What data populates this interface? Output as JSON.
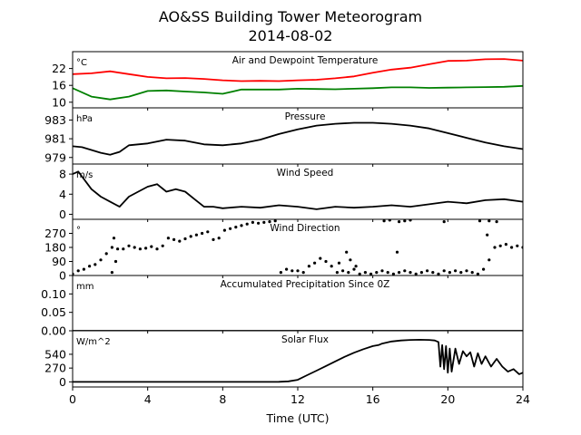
{
  "figure": {
    "title_line1": "AO&SS Building Tower Meteorogram",
    "title_line2": "2014-08-02",
    "xlabel": "Time (UTC)"
  },
  "chart_data": {
    "type": "line",
    "xlim": [
      0,
      24
    ],
    "xticks": [
      0,
      4,
      8,
      12,
      16,
      20,
      24
    ],
    "panels": [
      {
        "title": "Air and Dewpoint Temperature",
        "unit": "°C",
        "ylim": [
          8,
          28
        ],
        "yticks": [
          10,
          16,
          22
        ],
        "series": [
          {
            "color": "#ff0000",
            "style": "line",
            "x": [
              0,
              1,
              2,
              3,
              4,
              5,
              6,
              7,
              8,
              9,
              10,
              11,
              12,
              13,
              14,
              15,
              16,
              17,
              18,
              19,
              20,
              21,
              22,
              23,
              24
            ],
            "y": [
              20,
              20.3,
              21,
              20,
              19,
              18.5,
              18.6,
              18.3,
              17.8,
              17.5,
              17.6,
              17.5,
              17.8,
              18,
              18.5,
              19.2,
              20.5,
              21.6,
              22.3,
              23.5,
              24.7,
              24.8,
              25.3,
              25.4,
              24.8
            ]
          },
          {
            "color": "#008000",
            "style": "line",
            "x": [
              0,
              1,
              2,
              3,
              4,
              5,
              6,
              7,
              8,
              9,
              10,
              11,
              12,
              13,
              14,
              15,
              16,
              17,
              18,
              19,
              20,
              21,
              22,
              23,
              24
            ],
            "y": [
              15,
              12,
              11,
              12,
              14,
              14.2,
              13.8,
              13.5,
              13,
              14.5,
              14.5,
              14.5,
              14.8,
              14.7,
              14.6,
              14.8,
              15,
              15.3,
              15.3,
              15.1,
              15.2,
              15.3,
              15.4,
              15.5,
              15.8
            ]
          }
        ]
      },
      {
        "title": "Pressure",
        "unit": "hPa",
        "ylim": [
          978.3,
          984.3
        ],
        "yticks": [
          979,
          981,
          983
        ],
        "series": [
          {
            "color": "#000000",
            "style": "line",
            "x": [
              0,
              0.5,
              1,
              1.5,
              2,
              2.5,
              3,
              4,
              5,
              6,
              7,
              8,
              9,
              10,
              11,
              12,
              13,
              14,
              15,
              16,
              17,
              18,
              19,
              20,
              21,
              22,
              23,
              24
            ],
            "y": [
              980.2,
              980.1,
              979.8,
              979.5,
              979.3,
              979.6,
              980.3,
              980.5,
              980.9,
              980.8,
              980.4,
              980.3,
              980.5,
              980.9,
              981.5,
              982,
              982.4,
              982.6,
              982.7,
              982.7,
              982.6,
              982.4,
              982.1,
              981.6,
              981.1,
              980.6,
              980.2,
              979.9
            ]
          }
        ]
      },
      {
        "title": "Wind Speed",
        "unit": "m/s",
        "ylim": [
          -1,
          10
        ],
        "yticks": [
          0,
          4,
          8
        ],
        "series": [
          {
            "color": "#000000",
            "style": "line",
            "x": [
              0,
              0.3,
              0.6,
              1,
              1.5,
              2,
              2.5,
              3,
              3.5,
              4,
              4.5,
              5,
              5.5,
              6,
              6.5,
              7,
              7.5,
              8,
              9,
              10,
              11,
              12,
              13,
              14,
              15,
              16,
              17,
              18,
              19,
              20,
              21,
              22,
              23,
              24
            ],
            "y": [
              8,
              8.5,
              7,
              5,
              3.5,
              2.5,
              1.5,
              3.5,
              4.5,
              5.5,
              6,
              4.5,
              5,
              4.5,
              3,
              1.5,
              1.5,
              1.2,
              1.5,
              1.3,
              1.8,
              1.5,
              1,
              1.5,
              1.3,
              1.5,
              1.8,
              1.5,
              2,
              2.5,
              2.2,
              2.8,
              3,
              2.5
            ]
          }
        ]
      },
      {
        "title": "Wind Direction",
        "unit": "°",
        "ylim": [
          0,
          360
        ],
        "yticks": [
          0,
          90,
          180,
          270
        ],
        "series": [
          {
            "color": "#000000",
            "style": "dots",
            "x": [
              0,
              0.3,
              0.6,
              0.9,
              1.2,
              1.5,
              1.8,
              2.1,
              2.4,
              2.7,
              3.0,
              3.3,
              3.6,
              3.9,
              4.2,
              4.5,
              4.8,
              5.1,
              5.4,
              5.7,
              6.0,
              6.3,
              6.6,
              6.9,
              7.2,
              7.5,
              7.8,
              8.1,
              8.4,
              8.7,
              9.0,
              9.3,
              9.6,
              9.9,
              10.2,
              10.5,
              10.8,
              11.1,
              11.4,
              11.7,
              12.0,
              12.3,
              12.6,
              12.9,
              13.2,
              13.5,
              13.8,
              14.1,
              14.4,
              14.7,
              15.0,
              15.3,
              15.6,
              15.9,
              16.2,
              16.5,
              16.8,
              17.1,
              17.4,
              17.7,
              18.0,
              18.3,
              18.6,
              18.9,
              19.2,
              19.5,
              19.8,
              20.1,
              20.4,
              20.7,
              21.0,
              21.3,
              21.6,
              21.9,
              22.2,
              22.5,
              22.8,
              23.1,
              23.4,
              23.7,
              24.0
            ],
            "y": [
              10,
              30,
              40,
              60,
              70,
              100,
              140,
              180,
              170,
              170,
              190,
              180,
              170,
              175,
              185,
              170,
              190,
              240,
              230,
              220,
              235,
              250,
              260,
              270,
              280,
              230,
              240,
              290,
              300,
              310,
              320,
              330,
              340,
              335,
              340,
              345,
              350,
              20,
              40,
              30,
              30,
              20,
              60,
              80,
              110,
              90,
              60,
              20,
              30,
              20,
              40,
              10,
              20,
              10,
              20,
              30,
              20,
              10,
              20,
              30,
              20,
              10,
              20,
              30,
              20,
              10,
              30,
              20,
              30,
              20,
              30,
              20,
              10,
              40,
              100,
              180,
              190,
              200,
              180,
              190,
              180
            ]
          },
          {
            "color": "#000000",
            "style": "dots",
            "x": [
              2.2,
              2.3,
              2.1,
              14.2,
              14.6,
              14.8,
              15.1,
              16.6,
              16.9,
              17.4,
              17.7,
              18.0,
              19.8,
              21.7,
              22.2,
              22.6,
              22.1,
              17.3
            ],
            "y": [
              240,
              90,
              20,
              80,
              150,
              100,
              60,
              350,
              355,
              345,
              350,
              355,
              345,
              350,
              350,
              345,
              260,
              150
            ]
          }
        ]
      },
      {
        "title": "Accumulated Precipitation Since 0Z",
        "unit": "mm",
        "ylim": [
          0,
          0.15
        ],
        "yticks": [
          0.0,
          0.05,
          0.1
        ],
        "ytick_labels": [
          "0.00",
          "0.05",
          "0.10"
        ],
        "series": [
          {
            "color": "#000000",
            "style": "line",
            "x": [
              0,
              24
            ],
            "y": [
              0,
              0
            ]
          }
        ]
      },
      {
        "title": "Solar Flux",
        "unit": "W/m^2",
        "ylim": [
          -100,
          1000
        ],
        "yticks": [
          0,
          270,
          540
        ],
        "series": [
          {
            "color": "#000000",
            "style": "line",
            "x": [
              0,
              2,
              4,
              6,
              8,
              10,
              11,
              11.5,
              12,
              12.5,
              13,
              13.5,
              14,
              14.5,
              15,
              15.5,
              16,
              16.3,
              16.5,
              17,
              17.5,
              18,
              18.5,
              19,
              19.3,
              19.5,
              19.6,
              19.7,
              19.8,
              19.9,
              20.0,
              20.1,
              20.2,
              20.4,
              20.6,
              20.8,
              21.0,
              21.2,
              21.4,
              21.6,
              21.8,
              22.0,
              22.3,
              22.6,
              22.9,
              23.2,
              23.5,
              23.8,
              24
            ],
            "y": [
              0,
              0,
              0,
              0,
              0,
              0,
              2,
              10,
              40,
              130,
              220,
              310,
              400,
              490,
              570,
              640,
              700,
              720,
              750,
              790,
              810,
              820,
              825,
              820,
              810,
              780,
              300,
              720,
              250,
              700,
              180,
              650,
              200,
              650,
              350,
              600,
              500,
              580,
              300,
              560,
              350,
              500,
              300,
              450,
              300,
              200,
              250,
              150,
              180
            ]
          }
        ]
      }
    ]
  }
}
